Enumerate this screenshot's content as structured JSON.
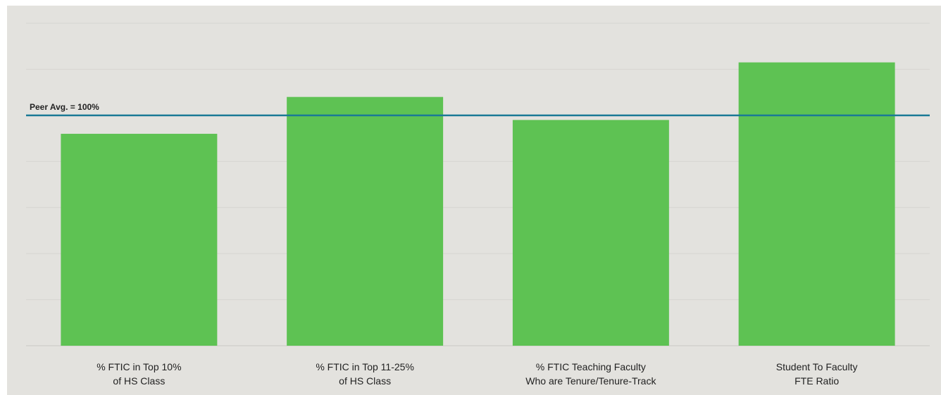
{
  "chart_data": {
    "type": "bar",
    "categories": [
      [
        "% FTIC in Top 10%",
        "of HS Class"
      ],
      [
        "% FTIC in Top 11-25%",
        "of HS Class"
      ],
      [
        "% FTIC Teaching Faculty",
        "Who are Tenure/Tenure-Track"
      ],
      [
        "Student To Faculty",
        "FTE Ratio"
      ]
    ],
    "values": [
      92,
      108,
      98,
      123
    ],
    "color": "#5ec253",
    "ylim": [
      0,
      140
    ],
    "yticks": [
      0,
      20,
      40,
      60,
      80,
      100,
      120,
      140
    ],
    "grid": true,
    "reference_line": {
      "value": 100,
      "label": "Peer Avg.  = 100%",
      "color": "#1b7a96"
    }
  }
}
